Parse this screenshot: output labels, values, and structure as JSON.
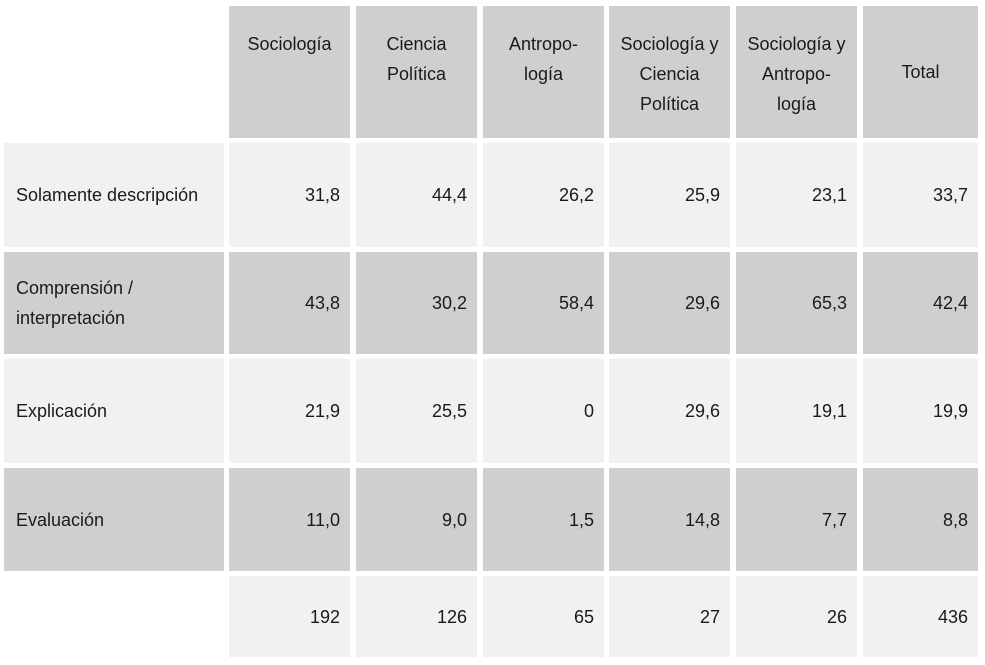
{
  "table": {
    "headers": [
      "Sociología",
      "Ciencia\nPolítica",
      "Antropo-\nlogía",
      "Sociología y\nCiencia\nPolítica",
      "Sociología y\nAntropo-\nlogía",
      "Total"
    ],
    "rows": [
      {
        "label": "Solamente descripción",
        "values": [
          "31,8",
          "44,4",
          "26,2",
          "25,9",
          "23,1",
          "33,7"
        ]
      },
      {
        "label": "Comprensión /\ninterpretación",
        "values": [
          "43,8",
          "30,2",
          "58,4",
          "29,6",
          "65,3",
          "42,4"
        ]
      },
      {
        "label": "Explicación",
        "values": [
          "21,9",
          "25,5",
          "0",
          "29,6",
          "19,1",
          "19,9"
        ]
      },
      {
        "label": "Evaluación",
        "values": [
          "11,0",
          "9,0",
          "1,5",
          "14,8",
          "7,7",
          "8,8"
        ]
      }
    ],
    "totals": {
      "label": "",
      "values": [
        "192",
        "126",
        "65",
        "27",
        "26",
        "436"
      ]
    }
  },
  "colors": {
    "dark_cell": "#cfcfcf",
    "light_cell": "#f1f1f1"
  }
}
